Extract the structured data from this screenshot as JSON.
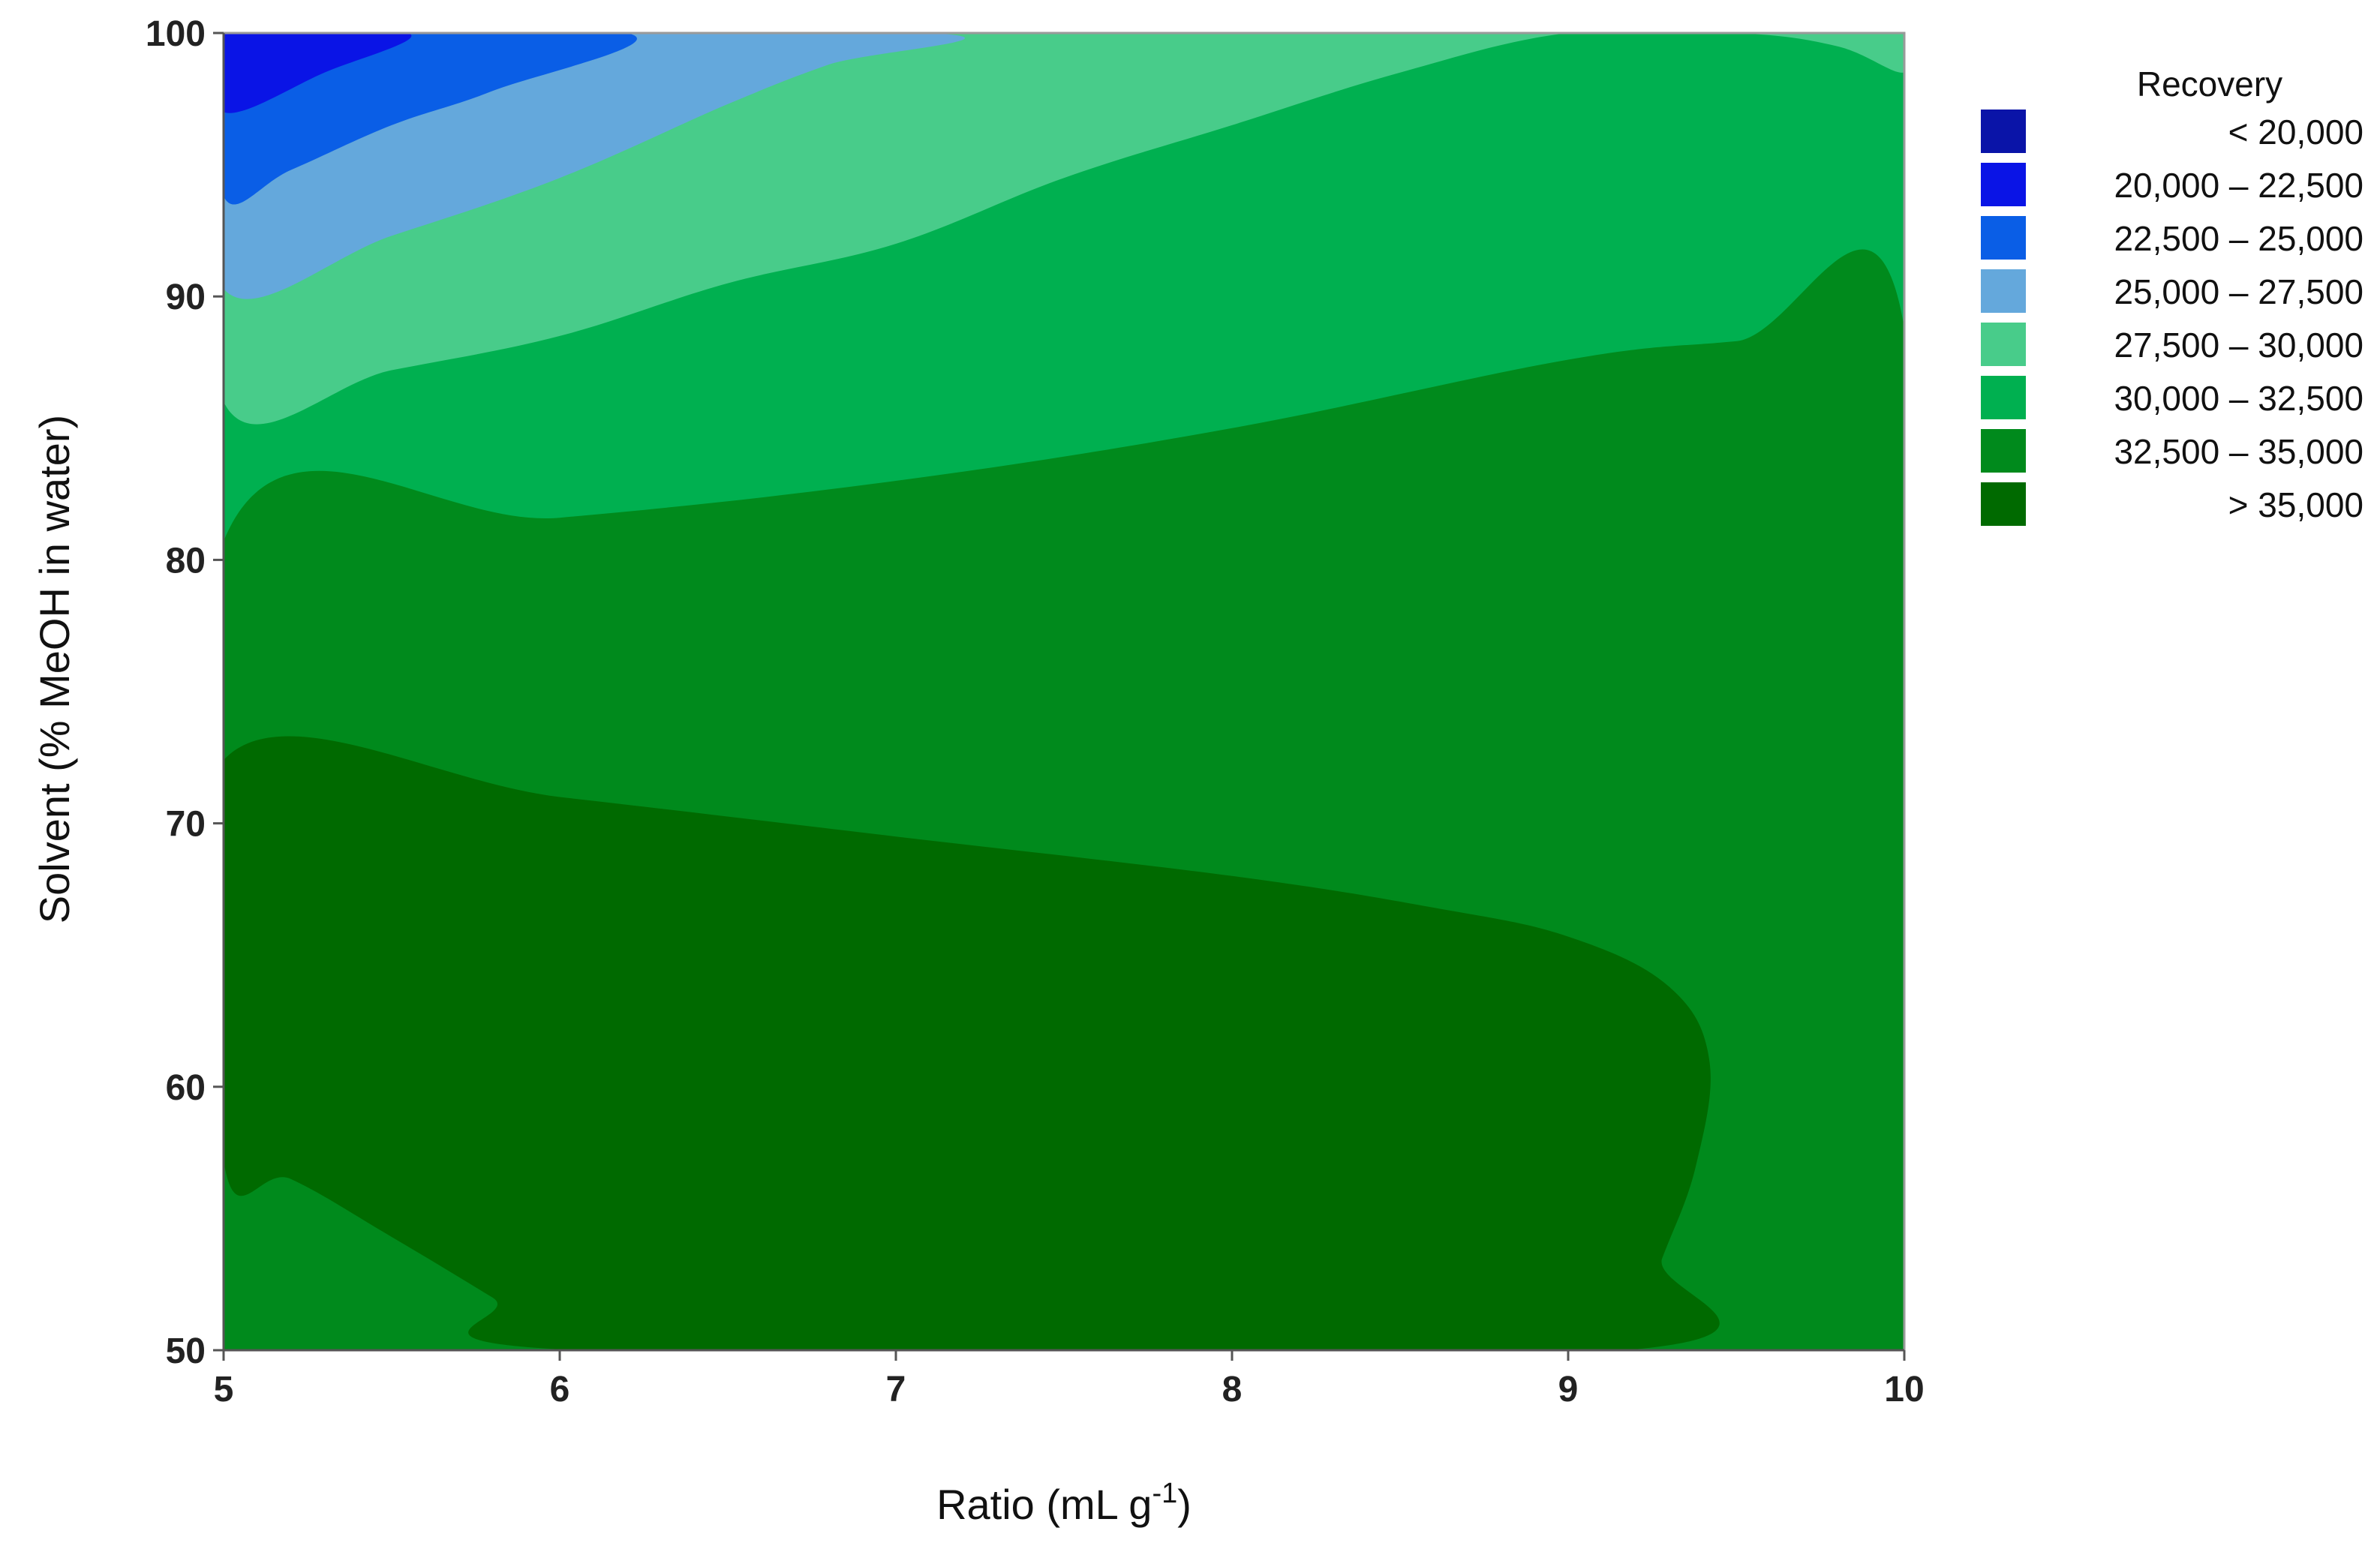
{
  "chart_data": {
    "type": "contour",
    "xlabel": "Ratio (mL g",
    "xlabel_superscript": "-1",
    "xlabel_suffix": ")",
    "ylabel": "Solvent (% MeOH in water)",
    "xlim": [
      5,
      10
    ],
    "ylim": [
      50,
      100
    ],
    "x_ticks": [
      5,
      6,
      7,
      8,
      9,
      10
    ],
    "y_ticks": [
      50,
      60,
      70,
      80,
      90,
      100
    ],
    "grid": false,
    "legend": {
      "title": "Recovery",
      "placement": "right",
      "entries": [
        {
          "label": "< 20,000",
          "color": "#0a14a8"
        },
        {
          "label": "20,000 – 22,500",
          "color": "#0a14e6"
        },
        {
          "label": "22,500 – 25,000",
          "color": "#0a5ee6"
        },
        {
          "label": "25,000 – 27,500",
          "color": "#64a8dc"
        },
        {
          "label": "27,500 – 30,000",
          "color": "#48cc8a"
        },
        {
          "label": "30,000 – 32,500",
          "color": "#00b050"
        },
        {
          "label": "32,500 – 35,000",
          "color": "#008a1c"
        },
        {
          "label": "> 35,000",
          "color": "#006a00"
        }
      ]
    },
    "regions": [
      {
        "level": "30,000 – 32,500",
        "color": "#00b050",
        "polygon": [
          [
            5,
            100
          ],
          [
            10,
            100
          ],
          [
            10,
            50
          ],
          [
            5,
            50
          ]
        ]
      },
      {
        "level": "27,500 – 30,000",
        "color": "#48cc8a",
        "polygon": [
          [
            5,
            100
          ],
          [
            10,
            100
          ],
          [
            10,
            98.5
          ],
          [
            9.8,
            99.5
          ],
          [
            9.5,
            100
          ],
          [
            9,
            100
          ],
          [
            8.5,
            98.5
          ],
          [
            8,
            96.5
          ],
          [
            7.5,
            94.5
          ],
          [
            7,
            92
          ],
          [
            6.5,
            90.5
          ],
          [
            6,
            88.5
          ],
          [
            5.5,
            87.2
          ],
          [
            5,
            86
          ]
        ]
      },
      {
        "level": "25,000 – 27,500",
        "color": "#64a8dc",
        "polygon": [
          [
            5,
            100
          ],
          [
            7.1,
            100
          ],
          [
            6.8,
            98.8
          ],
          [
            6.5,
            97.3
          ],
          [
            6,
            94.5
          ],
          [
            5.5,
            92.3
          ],
          [
            5,
            90.3
          ]
        ]
      },
      {
        "level": "22,500 – 25,000",
        "color": "#0a5ee6",
        "polygon": [
          [
            5,
            100
          ],
          [
            6.2,
            100
          ],
          [
            5.8,
            97.8
          ],
          [
            5.5,
            96.5
          ],
          [
            5.2,
            94.8
          ],
          [
            5,
            93.8
          ]
        ]
      },
      {
        "level": "20,000 – 22,500",
        "color": "#0a14e6",
        "polygon": [
          [
            5,
            100
          ],
          [
            5.55,
            100
          ],
          [
            5.3,
            98.5
          ],
          [
            5,
            97
          ]
        ]
      },
      {
        "level": "32,500 – 35,000",
        "color": "#008a1c",
        "polygon": [
          [
            5,
            80.7
          ],
          [
            6,
            81.6
          ],
          [
            7,
            83
          ],
          [
            8,
            85
          ],
          [
            9,
            87.6
          ],
          [
            9.5,
            88.3
          ],
          [
            10,
            88.8
          ],
          [
            10,
            50
          ],
          [
            5,
            50
          ]
        ]
      },
      {
        "level": "> 35,000",
        "color": "#006a00",
        "polygon": [
          [
            5,
            72.4
          ],
          [
            6,
            71
          ],
          [
            7,
            69.5
          ],
          [
            8,
            68
          ],
          [
            8.6,
            66.8
          ],
          [
            9,
            65.7
          ],
          [
            9.3,
            63.8
          ],
          [
            9.42,
            61
          ],
          [
            9.38,
            57
          ],
          [
            9.28,
            53.5
          ],
          [
            9.17,
            50
          ],
          [
            6.05,
            50
          ],
          [
            5.8,
            52
          ],
          [
            5.5,
            54.3
          ],
          [
            5.2,
            56.5
          ],
          [
            5,
            57.2
          ]
        ]
      }
    ]
  }
}
